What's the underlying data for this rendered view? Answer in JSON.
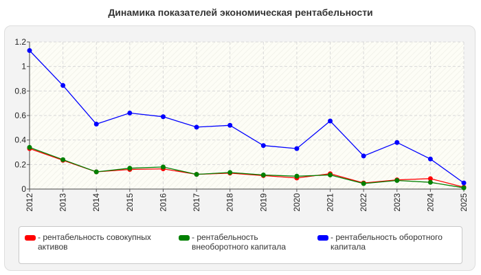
{
  "title": "Динамика показателей экономическая рентабельности",
  "chart_data": {
    "type": "line",
    "title": "Динамика показателей экономическая рентабельности",
    "xlabel": "",
    "ylabel": "",
    "ylim": [
      0,
      1.2
    ],
    "yticks": [
      "0",
      "0.2",
      "0.4",
      "0.6",
      "0.8",
      "1",
      "1.2"
    ],
    "grid": true,
    "legend_position": "bottom",
    "categories": [
      "2012",
      "2013",
      "2014",
      "2015",
      "2016",
      "2017",
      "2018",
      "2019",
      "2020",
      "2021",
      "2022",
      "2023",
      "2024",
      "2025"
    ],
    "series": [
      {
        "name": "- рентабельность совокупных активов",
        "color": "#ff0000",
        "values": [
          0.33,
          0.235,
          0.14,
          0.16,
          0.165,
          0.12,
          0.13,
          0.11,
          0.09,
          0.125,
          0.05,
          0.075,
          0.085,
          0.015
        ]
      },
      {
        "name": "- рентабельность внеоборотного капитала",
        "color": "#008000",
        "values": [
          0.34,
          0.24,
          0.14,
          0.17,
          0.18,
          0.12,
          0.135,
          0.115,
          0.105,
          0.115,
          0.045,
          0.07,
          0.055,
          0.01
        ]
      },
      {
        "name": "- рентабельность оборотного капитала",
        "color": "#0000ff",
        "values": [
          1.13,
          0.845,
          0.53,
          0.62,
          0.59,
          0.505,
          0.52,
          0.355,
          0.33,
          0.555,
          0.27,
          0.38,
          0.245,
          0.05
        ]
      }
    ]
  }
}
